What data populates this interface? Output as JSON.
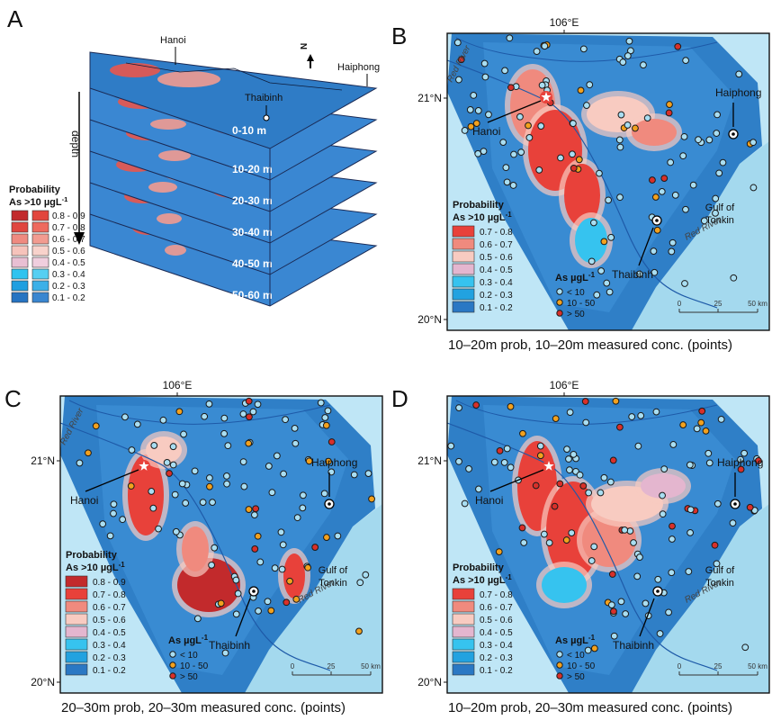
{
  "panel_a": {
    "letter": "A",
    "cities": [
      "Hanoi",
      "Thaibinh",
      "Haiphong"
    ],
    "north": "N",
    "depth": "depth",
    "layers": [
      "0-10 m",
      "10-20 m",
      "20-30 m",
      "30-40 m",
      "40-50 m",
      "50-60 m"
    ],
    "legend": {
      "title": "Probability",
      "subtitle": "As >10 µgL",
      "superscript": "-1",
      "classes": [
        {
          "label": "0.8 - 0.9",
          "colors": [
            "#c22a2c",
            "#e2463d"
          ]
        },
        {
          "label": "0.7 - 0.8",
          "colors": [
            "#e0463f",
            "#ee6a5e"
          ]
        },
        {
          "label": "0.6 - 0.7",
          "colors": [
            "#ef8a80",
            "#f29b90"
          ]
        },
        {
          "label": "0.5 - 0.6",
          "colors": [
            "#f6c3bb",
            "#f8d2cb"
          ]
        },
        {
          "label": "0.4 - 0.5",
          "colors": [
            "#e9bfd3",
            "#f0cede"
          ]
        },
        {
          "label": "0.3 - 0.4",
          "colors": [
            "#2fc3ef",
            "#56cff2"
          ]
        },
        {
          "label": "0.2 - 0.3",
          "colors": [
            "#1f9fe0",
            "#3bb0e8"
          ]
        },
        {
          "label": "0.1 - 0.2",
          "colors": [
            "#2674c2",
            "#3a86d0"
          ]
        }
      ]
    }
  },
  "maps": [
    {
      "letter": "B",
      "lon": "106°E",
      "lat": [
        "21°N",
        "20°N"
      ],
      "cities": [
        "Hanoi",
        "Haiphong",
        "Thaibinh"
      ],
      "rivers": [
        "Red River",
        "Red River"
      ],
      "gulf": [
        "Gulf of",
        "Tonkin"
      ],
      "legend": {
        "title": "Probability",
        "subtitle": "As >10 µgL",
        "superscript": "-1",
        "classes": [
          {
            "label": "0.7 - 0.8",
            "color": "#e8413a"
          },
          {
            "label": "0.6 - 0.7",
            "color": "#f08a7e"
          },
          {
            "label": "0.5 - 0.6",
            "color": "#f8cbc1"
          },
          {
            "label": "0.4 - 0.5",
            "color": "#e4b6cf"
          },
          {
            "label": "0.3 - 0.4",
            "color": "#36c3ef"
          },
          {
            "label": "0.2 - 0.3",
            "color": "#22a2e0"
          },
          {
            "label": "0.1 - 0.2",
            "color": "#2a78c4"
          }
        ]
      },
      "conc": {
        "title": "As µgL",
        "superscript": "-1",
        "items": [
          {
            "label": "< 10",
            "color": "#a9def2"
          },
          {
            "label": "10 - 50",
            "color": "#f2a11e"
          },
          {
            "label": "> 50",
            "color": "#d8302a"
          }
        ]
      },
      "scale": [
        "0",
        "25",
        "50 km"
      ],
      "caption": "10–20m prob, 10–20m  measured conc. (points)"
    },
    {
      "letter": "C",
      "lon": "106°E",
      "lat": [
        "21°N",
        "20°N"
      ],
      "cities": [
        "Hanoi",
        "Haiphong",
        "Thaibinh"
      ],
      "rivers": [
        "Red River",
        "Red River"
      ],
      "gulf": [
        "Gulf of",
        "Tonkin"
      ],
      "legend": {
        "title": "Probability",
        "subtitle": "As >10 µgL",
        "superscript": "-1",
        "classes": [
          {
            "label": "0.8 - 0.9",
            "color": "#c22a2c"
          },
          {
            "label": "0.7 - 0.8",
            "color": "#e8413a"
          },
          {
            "label": "0.6 - 0.7",
            "color": "#f08a7e"
          },
          {
            "label": "0.5 - 0.6",
            "color": "#f8cbc1"
          },
          {
            "label": "0.4 - 0.5",
            "color": "#e4b6cf"
          },
          {
            "label": "0.3 - 0.4",
            "color": "#36c3ef"
          },
          {
            "label": "0.2 - 0.3",
            "color": "#22a2e0"
          },
          {
            "label": "0.1 - 0.2",
            "color": "#2a78c4"
          }
        ]
      },
      "conc": {
        "title": "As µgL",
        "superscript": "-1",
        "items": [
          {
            "label": "< 10",
            "color": "#a9def2"
          },
          {
            "label": "10 - 50",
            "color": "#f2a11e"
          },
          {
            "label": "> 50",
            "color": "#d8302a"
          }
        ]
      },
      "scale": [
        "0",
        "25",
        "50 km"
      ],
      "caption": "20–30m prob, 20–30m  measured conc. (points)"
    },
    {
      "letter": "D",
      "lon": "106°E",
      "lat": [
        "21°N",
        "20°N"
      ],
      "cities": [
        "Hanoi",
        "Haiphong",
        "Thaibinh"
      ],
      "rivers": [
        "Red River"
      ],
      "gulf": [
        "Gulf of",
        "Tonkin"
      ],
      "legend": {
        "title": "Probability",
        "subtitle": "As >10 µgL",
        "superscript": "-1",
        "classes": [
          {
            "label": "0.7 - 0.8",
            "color": "#e8413a"
          },
          {
            "label": "0.6 - 0.7",
            "color": "#f08a7e"
          },
          {
            "label": "0.5 - 0.6",
            "color": "#f8cbc1"
          },
          {
            "label": "0.4 - 0.5",
            "color": "#e4b6cf"
          },
          {
            "label": "0.3 - 0.4",
            "color": "#36c3ef"
          },
          {
            "label": "0.2 - 0.3",
            "color": "#22a2e0"
          },
          {
            "label": "0.1 - 0.2",
            "color": "#2a78c4"
          }
        ]
      },
      "conc": {
        "title": "As µgL",
        "superscript": "-1",
        "items": [
          {
            "label": "< 10",
            "color": "#a9def2"
          },
          {
            "label": "10 - 50",
            "color": "#f2a11e"
          },
          {
            "label": "> 50",
            "color": "#d8302a"
          }
        ]
      },
      "scale": [
        "0",
        "25",
        "50 km"
      ],
      "caption": "10–20m prob, 20–30m  measured conc. (points)"
    }
  ]
}
